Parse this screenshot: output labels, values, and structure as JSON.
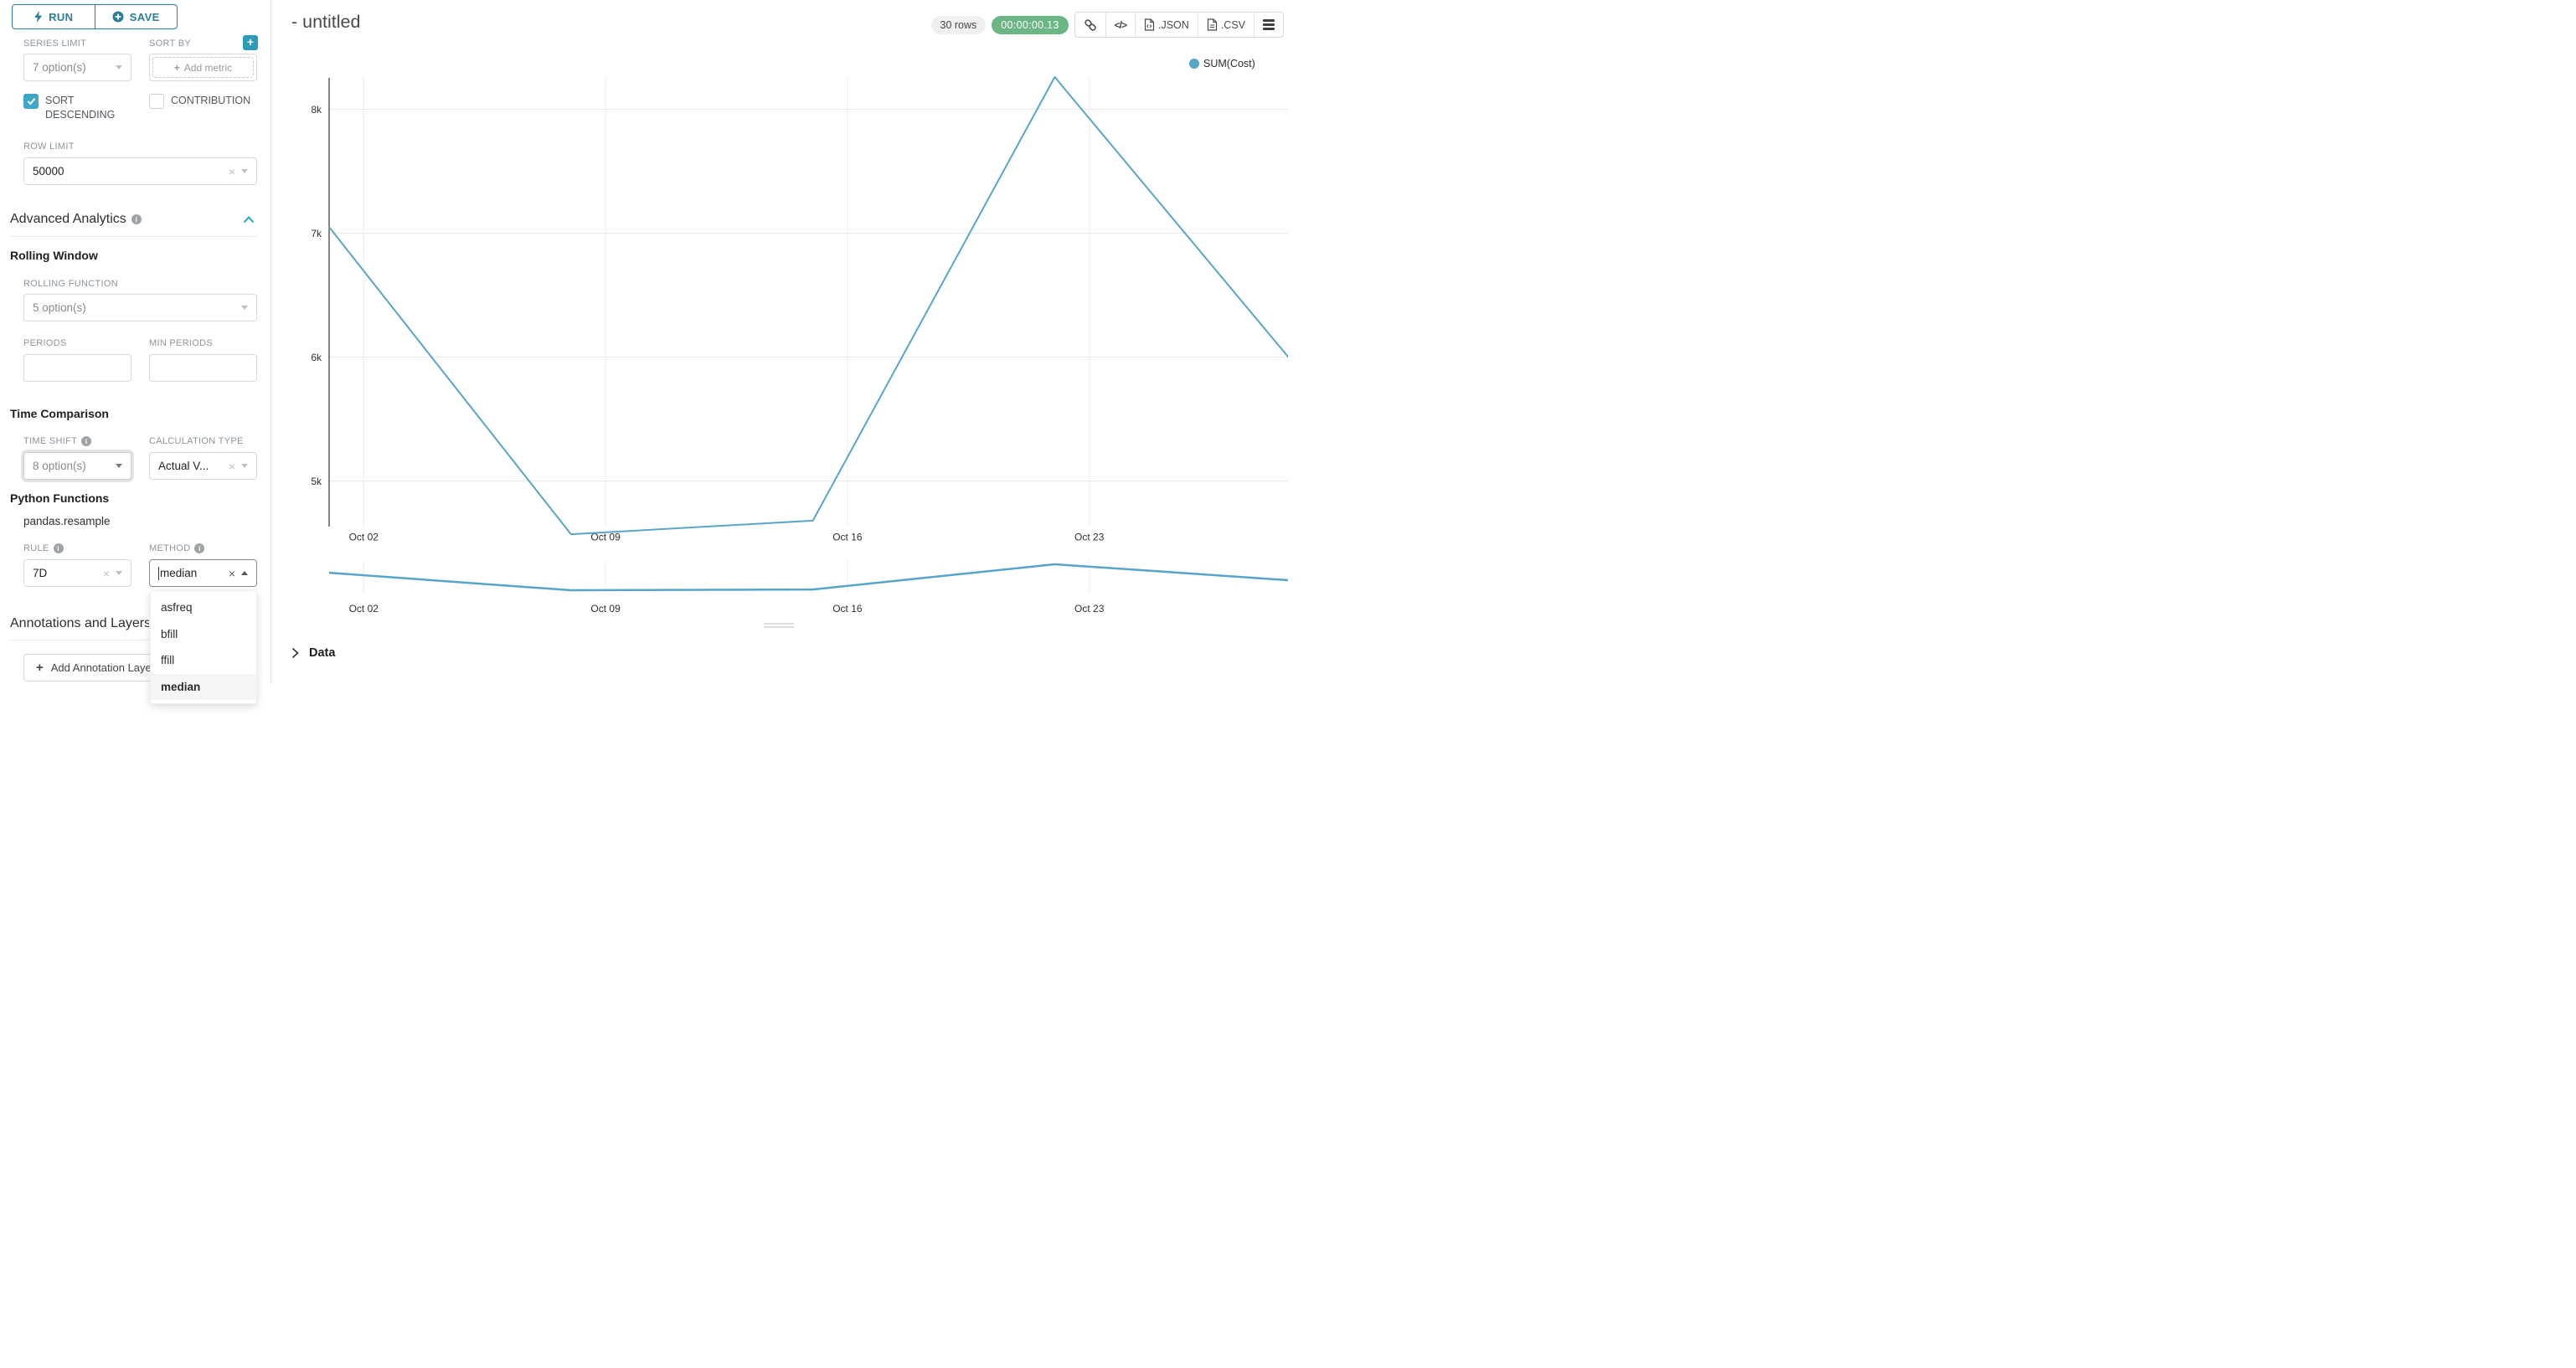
{
  "sidebar": {
    "run_label": "RUN",
    "save_label": "SAVE",
    "series_limit": {
      "label": "SERIES LIMIT",
      "value": "7 option(s)"
    },
    "sort_by": {
      "label": "SORT BY",
      "placeholder": "Add metric"
    },
    "sort_descending_label": "SORT DESCENDING",
    "contribution_label": "CONTRIBUTION",
    "row_limit": {
      "label": "ROW LIMIT",
      "value": "50000"
    },
    "advanced_analytics": {
      "title": "Advanced Analytics"
    },
    "rolling_window": {
      "title": "Rolling Window",
      "rolling_function_label": "ROLLING FUNCTION",
      "rolling_function_value": "5 option(s)",
      "periods_label": "PERIODS",
      "min_periods_label": "MIN PERIODS",
      "periods_value": "",
      "min_periods_value": ""
    },
    "time_comparison": {
      "title": "Time Comparison",
      "time_shift_label": "TIME SHIFT",
      "time_shift_value": "8 option(s)",
      "calculation_type_label": "CALCULATION TYPE",
      "calculation_type_value": "Actual V..."
    },
    "python_functions": {
      "title": "Python Functions",
      "subtitle": "pandas.resample",
      "rule_label": "RULE",
      "rule_value": "7D",
      "method_label": "METHOD",
      "method_value": "median"
    },
    "method_menu": {
      "options": [
        "asfreq",
        "bfill",
        "ffill",
        "median"
      ],
      "selected": "median"
    },
    "annotations": {
      "title": "Annotations and Layers",
      "add_button_label": "Add Annotation Layer"
    }
  },
  "header": {
    "title": "- untitled",
    "rows_badge": "30 rows",
    "timer": "00:00:00.13",
    "json_label": ".JSON",
    "csv_label": ".CSV"
  },
  "chart_data": {
    "type": "line",
    "title": "- untitled",
    "legend": [
      {
        "label": "SUM(Cost)",
        "color": "#57A5C9"
      }
    ],
    "x": [
      "Oct 01",
      "Oct 08",
      "Oct 15",
      "Oct 22",
      "Oct 29"
    ],
    "x_days": [
      1,
      8,
      15,
      22,
      29
    ],
    "series": [
      {
        "name": "SUM(Cost)",
        "values": [
          7050,
          4570,
          4680,
          8260,
          5920
        ]
      }
    ],
    "x_ticks": [
      {
        "label": "Oct 02",
        "day": 2
      },
      {
        "label": "Oct 09",
        "day": 9
      },
      {
        "label": "Oct 16",
        "day": 16
      },
      {
        "label": "Oct 23",
        "day": 23
      }
    ],
    "y_ticks": [
      {
        "label": "8k",
        "value": 8000
      },
      {
        "label": "7k",
        "value": 7000
      },
      {
        "label": "6k",
        "value": 6000
      },
      {
        "label": "5k",
        "value": 5000
      }
    ],
    "ylim": [
      4400,
      8500
    ],
    "grid": true,
    "legend_position": "top-right",
    "line_color": "#57A5C9",
    "mini_chart": {
      "x_ticks": [
        "Oct 02",
        "Oct 09",
        "Oct 16",
        "Oct 23"
      ]
    }
  },
  "data_panel": {
    "title": "Data"
  },
  "colors": {
    "accent": "#20A7C9",
    "button_teal": "#2B7E97",
    "checkbox_teal": "#3EA6C7",
    "timer_green": "#6CB685",
    "line": "#57A5C9"
  }
}
